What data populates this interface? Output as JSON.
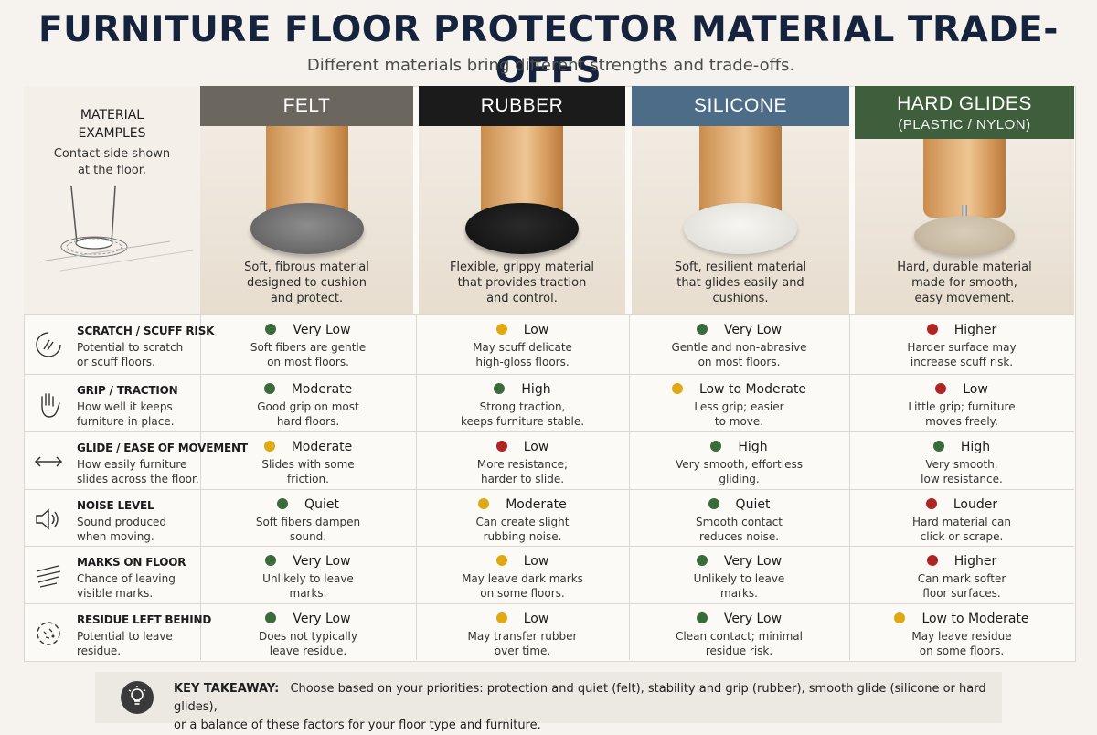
{
  "header": {
    "title": "FURNITURE FLOOR PROTECTOR MATERIAL TRADE-OFFS",
    "subtitle": "Different materials bring different strengths and trade-offs."
  },
  "examples": {
    "heading_line1": "MATERIAL",
    "heading_line2": "EXAMPLES",
    "note_line1": "Contact side shown",
    "note_line2": "at the floor."
  },
  "colors": {
    "felt": "#6b675e",
    "rubber": "#1b1b1b",
    "silicone": "#4c6c87",
    "hard": "#3f5e3c",
    "good": "#3a6b3a",
    "medium": "#e0a813",
    "bad": "#b02424"
  },
  "materials": [
    {
      "name": "FELT",
      "sub": "",
      "desc1": "Soft, fibrous material",
      "desc2": "designed to cushion",
      "desc3": "and protect."
    },
    {
      "name": "RUBBER",
      "sub": "",
      "desc1": "Flexible, grippy material",
      "desc2": "that provides traction",
      "desc3": "and control."
    },
    {
      "name": "SILICONE",
      "sub": "",
      "desc1": "Soft, resilient material",
      "desc2": "that glides easily and",
      "desc3": "cushions."
    },
    {
      "name": "HARD GLIDES",
      "sub": "(PLASTIC / NYLON)",
      "desc1": "Hard, durable material",
      "desc2": "made for smooth,",
      "desc3": "easy movement."
    }
  ],
  "criteria": [
    {
      "name": "SCRATCH / SCUFF RISK",
      "desc1": "Potential to scratch",
      "desc2": "or scuff floors.",
      "icon": "scratch-icon"
    },
    {
      "name": "GRIP / TRACTION",
      "desc1": "How well it keeps",
      "desc2": "furniture in place.",
      "icon": "hand-icon"
    },
    {
      "name": "GLIDE / EASE OF MOVEMENT",
      "desc1": "How easily furniture",
      "desc2": "slides across the floor.",
      "icon": "double-arrow-icon"
    },
    {
      "name": "NOISE LEVEL",
      "desc1": "Sound produced",
      "desc2": "when moving.",
      "icon": "speaker-icon"
    },
    {
      "name": "MARKS ON FLOOR",
      "desc1": "Chance of leaving",
      "desc2": "visible marks.",
      "icon": "marks-icon"
    },
    {
      "name": "RESIDUE LEFT BEHIND",
      "desc1": "Potential to leave",
      "desc2": "residue.",
      "icon": "residue-icon"
    }
  ],
  "ratings": [
    [
      {
        "level": "Very Low",
        "color": "good",
        "n1": "Soft fibers are gentle",
        "n2": "on most floors."
      },
      {
        "level": "Low",
        "color": "medium",
        "n1": "May scuff delicate",
        "n2": "high-gloss floors."
      },
      {
        "level": "Very Low",
        "color": "good",
        "n1": "Gentle and non-abrasive",
        "n2": "on most floors."
      },
      {
        "level": "Higher",
        "color": "bad",
        "n1": "Harder surface may",
        "n2": "increase scuff risk."
      }
    ],
    [
      {
        "level": "Moderate",
        "color": "good",
        "n1": "Good grip on most",
        "n2": "hard floors."
      },
      {
        "level": "High",
        "color": "good",
        "n1": "Strong traction,",
        "n2": "keeps furniture stable."
      },
      {
        "level": "Low to Moderate",
        "color": "medium",
        "n1": "Less grip; easier",
        "n2": "to move."
      },
      {
        "level": "Low",
        "color": "bad",
        "n1": "Little grip; furniture",
        "n2": "moves freely."
      }
    ],
    [
      {
        "level": "Moderate",
        "color": "medium",
        "n1": "Slides with some",
        "n2": "friction."
      },
      {
        "level": "Low",
        "color": "bad",
        "n1": "More resistance;",
        "n2": "harder to slide."
      },
      {
        "level": "High",
        "color": "good",
        "n1": "Very smooth, effortless",
        "n2": "gliding."
      },
      {
        "level": "High",
        "color": "good",
        "n1": "Very smooth,",
        "n2": "low resistance."
      }
    ],
    [
      {
        "level": "Quiet",
        "color": "good",
        "n1": "Soft fibers dampen",
        "n2": "sound."
      },
      {
        "level": "Moderate",
        "color": "medium",
        "n1": "Can create slight",
        "n2": "rubbing noise."
      },
      {
        "level": "Quiet",
        "color": "good",
        "n1": "Smooth contact",
        "n2": "reduces noise."
      },
      {
        "level": "Louder",
        "color": "bad",
        "n1": "Hard material can",
        "n2": "click or scrape."
      }
    ],
    [
      {
        "level": "Very Low",
        "color": "good",
        "n1": "Unlikely to leave",
        "n2": "marks."
      },
      {
        "level": "Low",
        "color": "medium",
        "n1": "May leave dark marks",
        "n2": "on some floors."
      },
      {
        "level": "Very Low",
        "color": "good",
        "n1": "Unlikely to leave",
        "n2": "marks."
      },
      {
        "level": "Higher",
        "color": "bad",
        "n1": "Can mark softer",
        "n2": "floor surfaces."
      }
    ],
    [
      {
        "level": "Very Low",
        "color": "good",
        "n1": "Does not typically",
        "n2": "leave residue."
      },
      {
        "level": "Low",
        "color": "medium",
        "n1": "May transfer rubber",
        "n2": "over time."
      },
      {
        "level": "Very Low",
        "color": "good",
        "n1": "Clean contact; minimal",
        "n2": "residue risk."
      },
      {
        "level": "Low to Moderate",
        "color": "medium",
        "n1": "May leave residue",
        "n2": "on some floors."
      }
    ]
  ],
  "takeaway": {
    "label": "KEY TAKEAWAY:",
    "line1": "Choose based on your priorities: protection and quiet (felt), stability and grip (rubber), smooth glide (silicone or hard glides),",
    "line2": "or a balance of these factors for your floor type and furniture.",
    "icon": "lightbulb-icon"
  }
}
